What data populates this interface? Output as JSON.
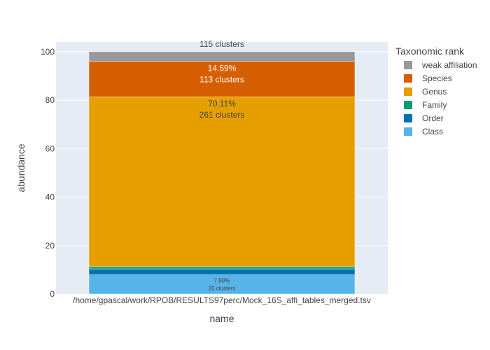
{
  "chart_data": {
    "type": "bar",
    "stacked": true,
    "xlabel": "name",
    "ylabel": "abundance",
    "ylim": [
      0,
      104
    ],
    "yticks": [
      0,
      20,
      40,
      60,
      80,
      100
    ],
    "grid": true,
    "categories": [
      "/home/gpascal/work/RPOB/RESULTS97perc/Mock_16S_affi_tables_merged.tsv"
    ],
    "legend": {
      "title": "Taxonomic rank",
      "placement": "right",
      "order": [
        "weak affiliation",
        "Species",
        "Genus",
        "Family",
        "Order",
        "Class"
      ]
    },
    "series": [
      {
        "name": "Class",
        "color": "#56B4E9",
        "values": [
          7.89
        ],
        "label_line1": "7.89%",
        "label_line2": "20 clusters",
        "label_color": "#444444",
        "label_size": "small"
      },
      {
        "name": "Order",
        "color": "#0072B2",
        "values": [
          2.5
        ],
        "label_line1": "",
        "label_line2": "",
        "label_color": "#ffffff",
        "label_size": "tiny"
      },
      {
        "name": "Family",
        "color": "#009E73",
        "values": [
          0.9
        ],
        "label_line1": "",
        "label_line2": "",
        "label_color": "#ffffff",
        "label_size": "tiny"
      },
      {
        "name": "Genus",
        "color": "#E69F00",
        "values": [
          70.11
        ],
        "label_line1": "70.11%",
        "label_line2": "261 clusters",
        "label_color": "#444444",
        "label_size": "normal"
      },
      {
        "name": "Species",
        "color": "#D55E00",
        "values": [
          14.59
        ],
        "label_line1": "14.59%",
        "label_line2": "113 clusters",
        "label_color": "#ffffff",
        "label_size": "normal"
      },
      {
        "name": "weak affiliation",
        "color": "#999999",
        "values": [
          4.01
        ],
        "label_line1": "115 clusters",
        "label_line2": "",
        "label_color": "#444444",
        "label_size": "outside"
      }
    ]
  }
}
